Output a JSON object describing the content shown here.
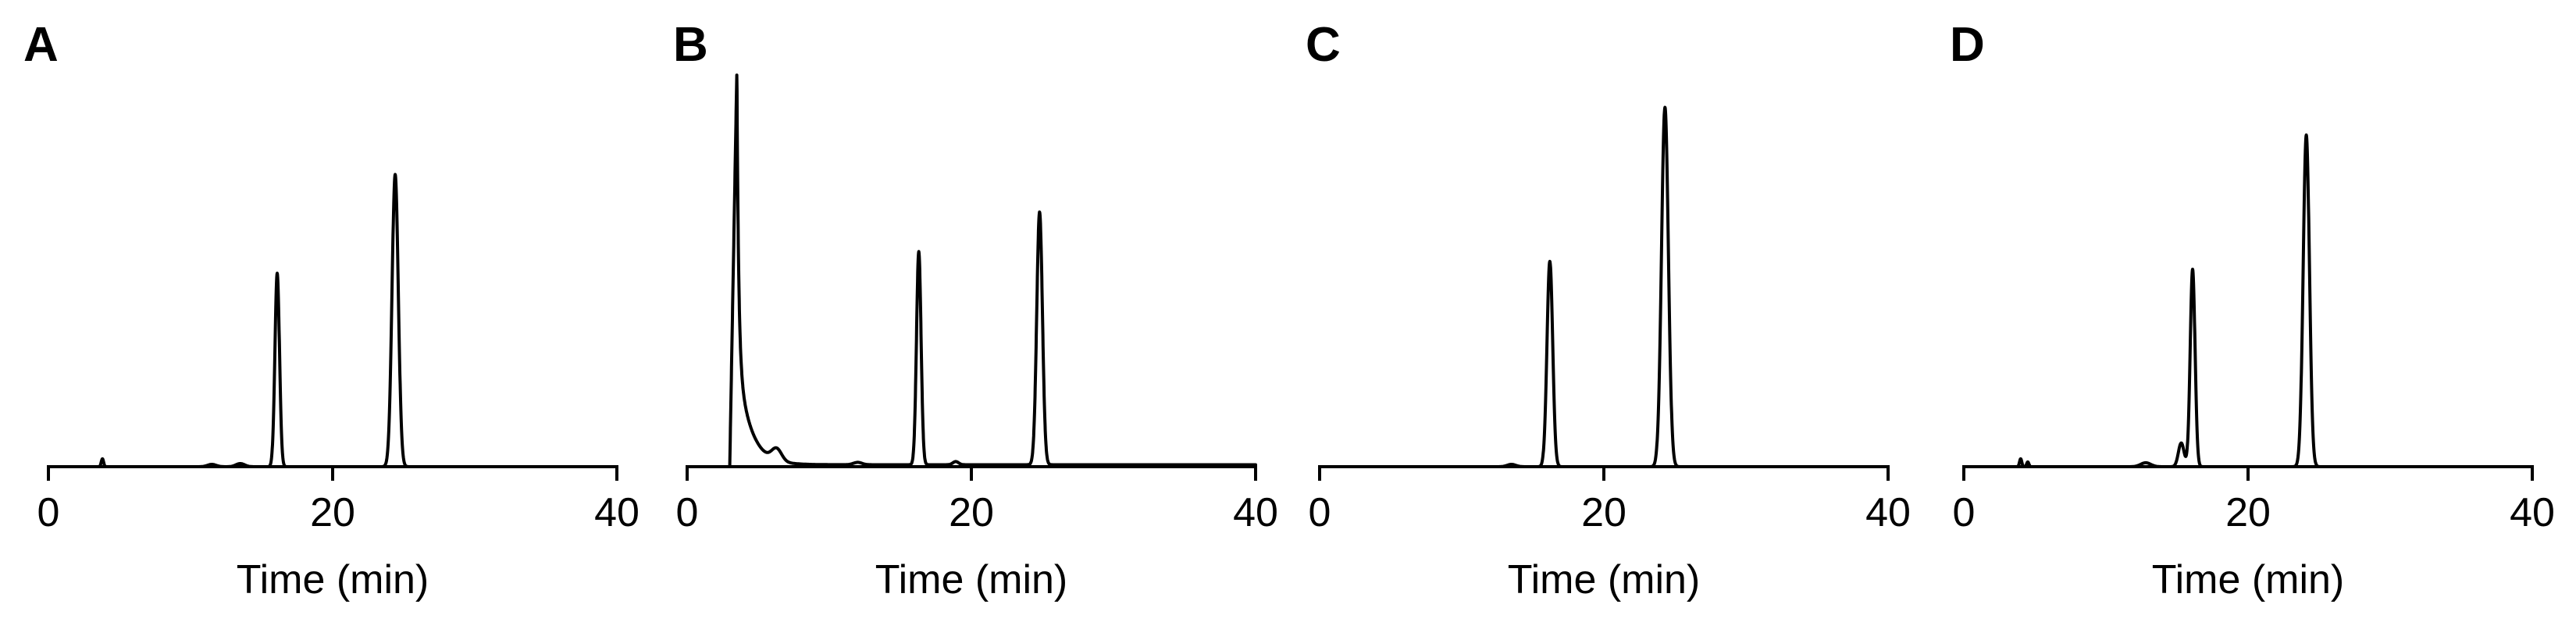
{
  "chart_data": [
    {
      "panel": "A",
      "type": "line",
      "xlabel": "Time (min)",
      "ylabel": "",
      "xlim": [
        0,
        40
      ],
      "xticks": [
        0,
        20,
        40
      ],
      "ylim": [
        0,
        1.0
      ],
      "grid": false,
      "baseline": 0.0,
      "peaks": [
        {
          "t": 3.8,
          "h": 0.02,
          "w": 0.08
        },
        {
          "t": 11.5,
          "h": 0.006,
          "w": 0.3
        },
        {
          "t": 13.5,
          "h": 0.008,
          "w": 0.3
        },
        {
          "t": 16.1,
          "h": 0.49,
          "w": 0.16
        },
        {
          "t": 24.4,
          "h": 0.74,
          "w": 0.22
        }
      ]
    },
    {
      "panel": "B",
      "type": "line",
      "xlabel": "Time (min)",
      "ylabel": "",
      "xlim": [
        0,
        40
      ],
      "xticks": [
        0,
        20,
        40
      ],
      "ylim": [
        0,
        1.0
      ],
      "grid": false,
      "baseline": 0.005,
      "solvent_front": {
        "t_start": 3.0,
        "t_peak": 3.5,
        "h": 1.0,
        "decay": 0.9
      },
      "peaks": [
        {
          "t": 6.3,
          "h": 0.03,
          "w": 0.35
        },
        {
          "t": 12.0,
          "h": 0.006,
          "w": 0.3
        },
        {
          "t": 18.9,
          "h": 0.008,
          "w": 0.2
        },
        {
          "t": 16.3,
          "h": 0.54,
          "w": 0.16
        },
        {
          "t": 24.8,
          "h": 0.64,
          "w": 0.2
        }
      ]
    },
    {
      "panel": "C",
      "type": "line",
      "xlabel": "Time (min)",
      "ylabel": "",
      "xlim": [
        0,
        40
      ],
      "xticks": [
        0,
        20,
        40
      ],
      "ylim": [
        0,
        1.0
      ],
      "grid": false,
      "baseline": 0.0,
      "peaks": [
        {
          "t": 13.5,
          "h": 0.006,
          "w": 0.3
        },
        {
          "t": 16.2,
          "h": 0.52,
          "w": 0.2
        },
        {
          "t": 24.3,
          "h": 0.91,
          "w": 0.24
        }
      ]
    },
    {
      "panel": "D",
      "type": "line",
      "xlabel": "Time (min)",
      "ylabel": "",
      "xlim": [
        0,
        40
      ],
      "xticks": [
        0,
        20,
        40
      ],
      "ylim": [
        0,
        1.0
      ],
      "grid": false,
      "baseline": 0.0,
      "peaks": [
        {
          "t": 4.0,
          "h": 0.02,
          "w": 0.08
        },
        {
          "t": 4.5,
          "h": 0.012,
          "w": 0.08
        },
        {
          "t": 12.8,
          "h": 0.01,
          "w": 0.35
        },
        {
          "t": 15.3,
          "h": 0.06,
          "w": 0.2
        },
        {
          "t": 16.1,
          "h": 0.5,
          "w": 0.17
        },
        {
          "t": 24.1,
          "h": 0.84,
          "w": 0.22
        }
      ]
    }
  ]
}
